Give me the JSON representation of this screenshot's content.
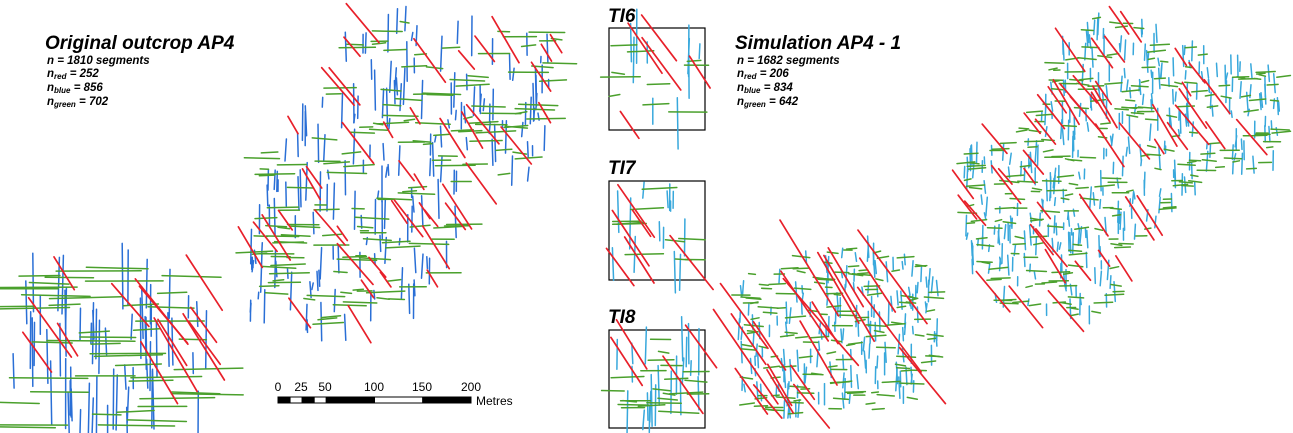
{
  "original": {
    "title": "Original outcrop AP4",
    "n_line": "n = 1810 segments",
    "red": {
      "prefix": "n",
      "sub": "red",
      "value": "= 252"
    },
    "blue": {
      "prefix": "n",
      "sub": "blue",
      "value": "= 856"
    },
    "green": {
      "prefix": "n",
      "sub": "green",
      "value": "= 702"
    }
  },
  "simulation": {
    "title": "Simulation AP4 - 1",
    "n_line": "n = 1682 segments",
    "red": {
      "prefix": "n",
      "sub": "red",
      "value": "= 206"
    },
    "blue": {
      "prefix": "n",
      "sub": "blue",
      "value": "= 834"
    },
    "green": {
      "prefix": "n",
      "sub": "green",
      "value": "= 642"
    }
  },
  "training_images": [
    {
      "label": "TI6"
    },
    {
      "label": "TI7"
    },
    {
      "label": "TI8"
    }
  ],
  "scale_bar": {
    "ticks": [
      "0",
      "25",
      "50",
      "100",
      "150",
      "200"
    ],
    "unit": "Metres"
  },
  "colors": {
    "red": "#e8202a",
    "blue_original": "#2a6fd6",
    "blue_simulation": "#38a8dc",
    "green": "#4aa02c",
    "black": "#000000"
  }
}
